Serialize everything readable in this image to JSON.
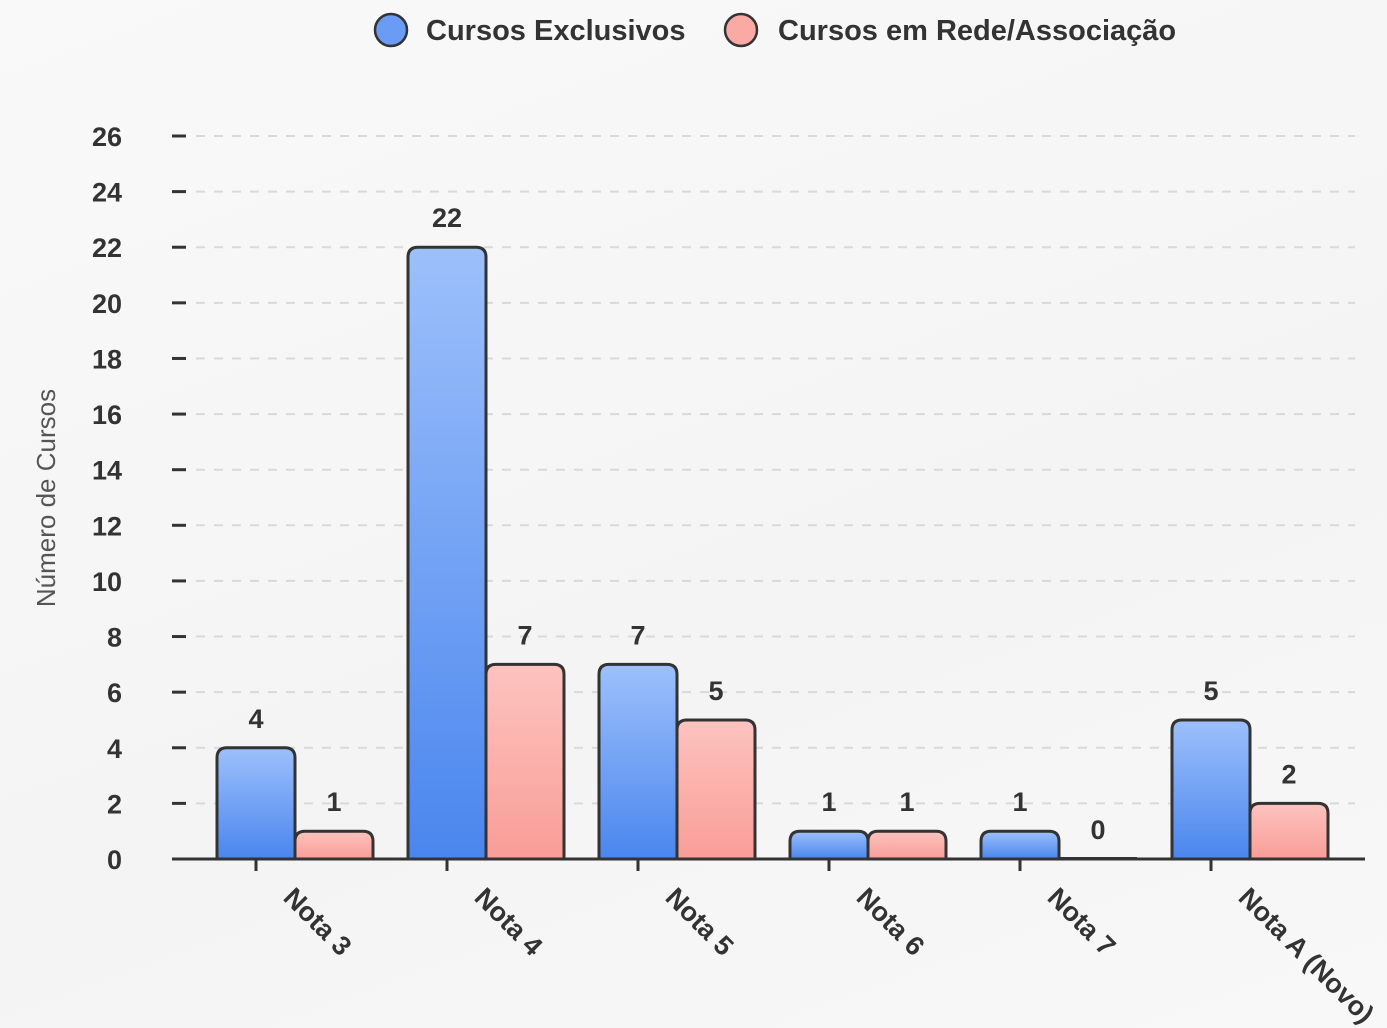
{
  "chart_data": {
    "type": "bar",
    "categories": [
      "Nota 3",
      "Nota 4",
      "Nota 5",
      "Nota 6",
      "Nota 7",
      "Nota A (Novo)"
    ],
    "series": [
      {
        "name": "Cursos Exclusivos",
        "values": [
          4,
          22,
          7,
          1,
          1,
          5
        ],
        "color": "#6a9cf5",
        "color_light": "#9dc0fb",
        "color_dark": "#4a86ee"
      },
      {
        "name": "Cursos em Rede/Associação",
        "values": [
          1,
          7,
          5,
          1,
          0,
          2
        ],
        "color": "#fba9a4",
        "color_light": "#fdc3bf",
        "color_dark": "#f99d97"
      }
    ],
    "title": "",
    "xlabel": "",
    "ylabel": "Número de Cursos",
    "ylim": [
      0,
      26
    ],
    "yticks": [
      0,
      2,
      4,
      6,
      8,
      10,
      12,
      14,
      16,
      18,
      20,
      22,
      24,
      26
    ],
    "grid": true,
    "legend_position": "top-center"
  }
}
